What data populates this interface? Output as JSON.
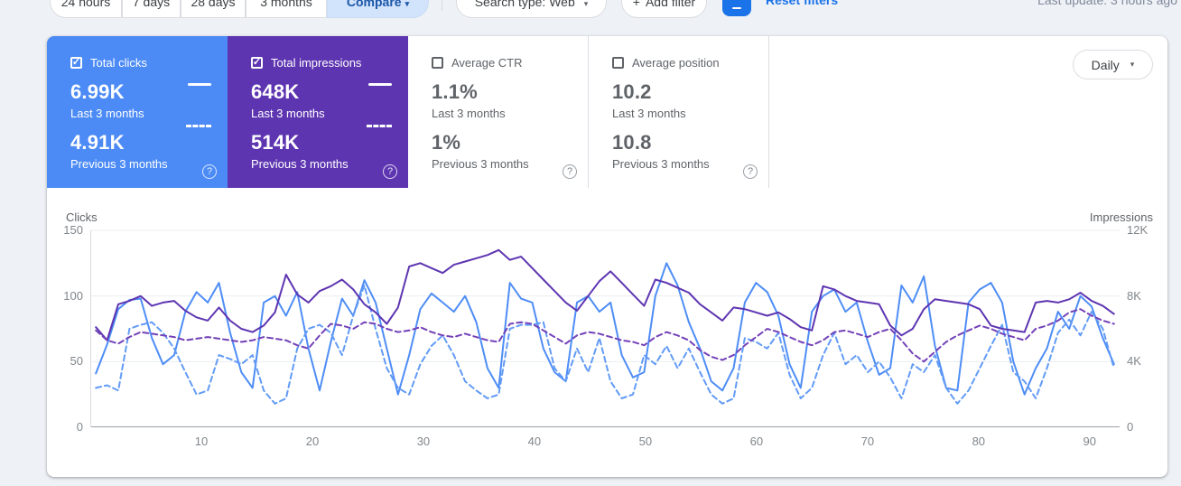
{
  "page": {
    "background": "#eef1f6",
    "last_update": "Last update: 3 hours ago"
  },
  "toolbar": {
    "date_ranges": [
      {
        "label": "24 hours"
      },
      {
        "label": "7 days"
      },
      {
        "label": "28 days"
      },
      {
        "label": "3 months"
      }
    ],
    "compare_label": "Compare",
    "compare_caret": "▾",
    "search_type_label": "Search type: Web",
    "add_filter_plus": "+",
    "add_filter_label": "Add filter",
    "filter_chip_label": "-",
    "reset_filters_label": "Reset filters"
  },
  "metric_cards": [
    {
      "label": "Total clicks",
      "checked": true,
      "color": "#4c8bf5",
      "current": "6.99K",
      "current_caption": "Last 3 months",
      "previous": "4.91K",
      "previous_caption": "Previous 3 months",
      "help": "?"
    },
    {
      "label": "Total impressions",
      "checked": true,
      "color": "#5e35b1",
      "current": "648K",
      "current_caption": "Last 3 months",
      "previous": "514K",
      "previous_caption": "Previous 3 months",
      "help": "?"
    },
    {
      "label": "Average CTR",
      "checked": false,
      "current": "1.1%",
      "current_caption": "Last 3 months",
      "previous": "1%",
      "previous_caption": "Previous 3 months",
      "help": "?"
    },
    {
      "label": "Average position",
      "checked": false,
      "current": "10.2",
      "current_caption": "Last 3 months",
      "previous": "10.8",
      "previous_caption": "Previous 3 months",
      "help": "?"
    }
  ],
  "granularity": {
    "label": "Daily",
    "caret": "▾"
  },
  "chart_data": {
    "type": "line",
    "x_unit": "day index (last 3 months, daily)",
    "x_ticks": [
      10,
      20,
      30,
      40,
      50,
      60,
      70,
      80,
      90
    ],
    "x_count": 92,
    "left_axis": {
      "title": "Clicks",
      "ticks": [
        "150",
        "100",
        "50",
        "0"
      ],
      "max": 150
    },
    "right_axis": {
      "title": "Impressions",
      "ticks": [
        "12K",
        "8K",
        "4K",
        "0"
      ],
      "max": 12
    },
    "grid": "horizontal",
    "series": [
      {
        "name": "Clicks - Last 3 months",
        "axis": "left",
        "style": "solid",
        "color": "#4e8df6",
        "values": [
          41,
          63,
          90,
          97,
          98,
          68,
          48,
          55,
          88,
          103,
          95,
          110,
          72,
          42,
          30,
          95,
          100,
          85,
          103,
          60,
          28,
          65,
          98,
          85,
          112,
          95,
          60,
          25,
          55,
          90,
          102,
          95,
          88,
          100,
          80,
          45,
          30,
          110,
          98,
          95,
          60,
          42,
          35,
          95,
          100,
          88,
          95,
          55,
          38,
          42,
          100,
          125,
          108,
          80,
          60,
          35,
          28,
          45,
          95,
          110,
          103,
          85,
          48,
          30,
          88,
          100,
          105,
          88,
          95,
          65,
          40,
          45,
          108,
          95,
          115,
          62,
          30,
          28,
          95,
          105,
          110,
          95,
          50,
          25,
          45,
          60,
          88,
          75,
          100,
          92,
          68,
          48
        ]
      },
      {
        "name": "Clicks - Previous 3 months",
        "axis": "left",
        "style": "dashed",
        "color": "#629bf6",
        "values": [
          30,
          32,
          28,
          75,
          78,
          80,
          72,
          60,
          42,
          25,
          28,
          55,
          52,
          48,
          55,
          28,
          18,
          22,
          60,
          75,
          78,
          72,
          55,
          85,
          108,
          75,
          45,
          30,
          25,
          48,
          62,
          70,
          55,
          35,
          28,
          22,
          25,
          75,
          78,
          78,
          80,
          45,
          35,
          60,
          42,
          68,
          35,
          22,
          25,
          55,
          48,
          62,
          45,
          60,
          42,
          25,
          18,
          22,
          68,
          65,
          60,
          72,
          40,
          22,
          30,
          55,
          72,
          48,
          55,
          42,
          50,
          38,
          22,
          48,
          42,
          55,
          30,
          18,
          28,
          45,
          62,
          78,
          42,
          35,
          22,
          45,
          72,
          82,
          70,
          88,
          75,
          45
        ]
      },
      {
        "name": "Impressions - Last 3 months",
        "axis": "right",
        "style": "solid",
        "color": "#5e35b1",
        "values": [
          6.1,
          5.3,
          7.5,
          7.7,
          8.0,
          7.4,
          7.6,
          7.7,
          7.1,
          6.7,
          6.5,
          7.3,
          6.5,
          6.0,
          5.8,
          6.2,
          7.0,
          9.3,
          8.1,
          7.6,
          8.3,
          8.6,
          9.0,
          8.4,
          7.5,
          7.0,
          6.3,
          7.3,
          9.8,
          10.0,
          9.7,
          9.4,
          9.9,
          10.1,
          10.3,
          10.5,
          10.8,
          10.2,
          10.4,
          9.7,
          9.0,
          8.3,
          7.6,
          7.1,
          8.0,
          8.9,
          9.5,
          8.8,
          8.1,
          7.4,
          9.0,
          8.8,
          8.5,
          8.2,
          7.5,
          7.0,
          6.5,
          7.3,
          7.2,
          7.0,
          6.8,
          7.0,
          6.6,
          6.1,
          5.9,
          8.6,
          8.4,
          8.0,
          7.7,
          7.6,
          7.5,
          6.2,
          5.6,
          6.0,
          7.2,
          7.8,
          7.7,
          7.6,
          7.5,
          7.2,
          6.2,
          6.0,
          5.9,
          5.8,
          7.6,
          7.7,
          7.6,
          7.8,
          8.2,
          7.7,
          7.4,
          6.9
        ]
      },
      {
        "name": "Impressions - Previous 3 months",
        "axis": "right",
        "style": "dashed",
        "color": "#7342b8",
        "values": [
          5.9,
          5.3,
          5.1,
          5.5,
          5.8,
          5.7,
          5.6,
          5.5,
          5.3,
          5.4,
          5.5,
          5.4,
          5.3,
          5.2,
          5.3,
          5.5,
          5.4,
          5.3,
          5.0,
          4.8,
          5.6,
          6.3,
          6.2,
          6.0,
          6.4,
          6.3,
          6.0,
          5.8,
          5.9,
          6.1,
          5.8,
          5.6,
          5.5,
          5.7,
          5.5,
          5.3,
          5.2,
          6.3,
          6.4,
          6.3,
          5.9,
          5.5,
          5.1,
          5.6,
          5.8,
          5.7,
          5.5,
          5.3,
          5.2,
          5.0,
          5.5,
          5.8,
          5.6,
          5.3,
          4.7,
          4.3,
          4.1,
          4.4,
          5.0,
          5.5,
          6.0,
          5.8,
          5.5,
          5.2,
          5.0,
          5.3,
          5.8,
          5.9,
          5.7,
          5.5,
          5.8,
          6.0,
          5.3,
          4.5,
          4.0,
          4.6,
          5.2,
          5.6,
          5.9,
          6.2,
          6.0,
          5.7,
          5.5,
          5.3,
          6.0,
          6.2,
          6.5,
          7.0,
          7.2,
          6.8,
          6.5,
          6.3
        ]
      }
    ]
  }
}
